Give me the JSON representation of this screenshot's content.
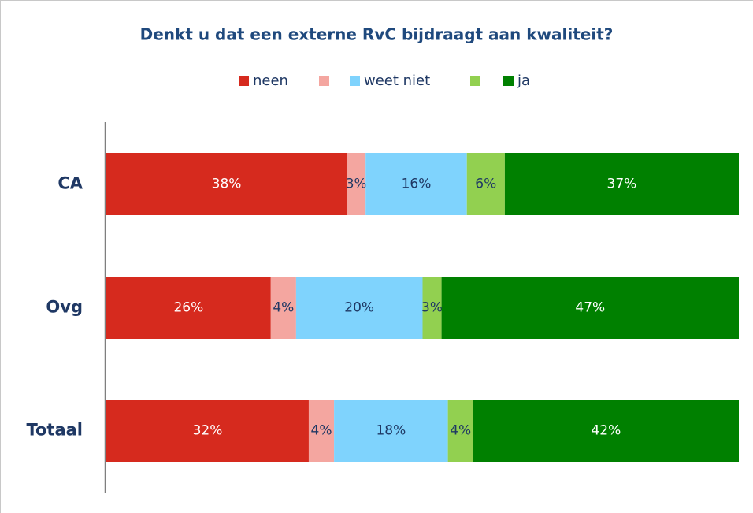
{
  "chart_data": {
    "type": "stacked_bar_horizontal",
    "title": "Denkt u dat een externe RvC bijdraagt aan kwaliteit?",
    "categories": [
      "CA",
      "Ovg",
      "Totaal"
    ],
    "xlim": [
      0,
      100
    ],
    "legend": "top",
    "series": [
      {
        "name": "neen",
        "color": "#d62a1e",
        "label_color": "#ffffff",
        "values": [
          38,
          26,
          32
        ],
        "value_labels": [
          "38%",
          "26%",
          "32%"
        ]
      },
      {
        "color": "#f4a6a0",
        "label_color": "#1f3864",
        "values": [
          3,
          4,
          4
        ],
        "value_labels": [
          "3%",
          "4%",
          "4%"
        ]
      },
      {
        "name": "weet niet",
        "color": "#7fd3fd",
        "label_color": "#1f3864",
        "values": [
          16,
          20,
          18
        ],
        "value_labels": [
          "16%",
          "20%",
          "18%"
        ]
      },
      {
        "color": "#92d050",
        "label_color": "#1f3864",
        "values": [
          6,
          3,
          4
        ],
        "value_labels": [
          "6%",
          "3%",
          "4%"
        ]
      },
      {
        "name": "ja",
        "color": "#008000",
        "label_color": "#ffffff",
        "values": [
          37,
          47,
          42
        ],
        "value_labels": [
          "37%",
          "47%",
          "42%"
        ]
      }
    ]
  }
}
